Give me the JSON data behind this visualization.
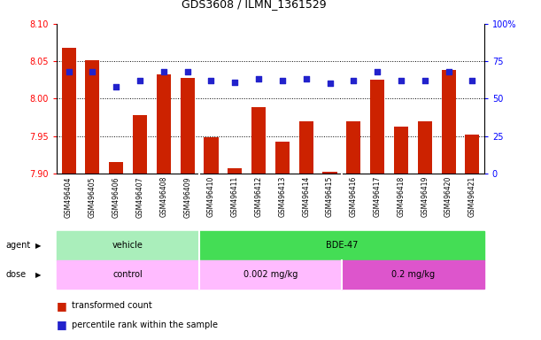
{
  "title": "GDS3608 / ILMN_1361529",
  "samples": [
    "GSM496404",
    "GSM496405",
    "GSM496406",
    "GSM496407",
    "GSM496408",
    "GSM496409",
    "GSM496410",
    "GSM496411",
    "GSM496412",
    "GSM496413",
    "GSM496414",
    "GSM496415",
    "GSM496416",
    "GSM496417",
    "GSM496418",
    "GSM496419",
    "GSM496420",
    "GSM496421"
  ],
  "bar_values": [
    8.068,
    8.051,
    7.915,
    7.978,
    8.032,
    8.028,
    7.948,
    7.907,
    7.988,
    7.943,
    7.97,
    7.902,
    7.97,
    8.025,
    7.962,
    7.97,
    8.038,
    7.952
  ],
  "percentile_values": [
    68,
    68,
    58,
    62,
    68,
    68,
    62,
    61,
    63,
    62,
    63,
    60,
    62,
    68,
    62,
    62,
    68,
    62
  ],
  "bar_color": "#CC2200",
  "percentile_color": "#2222CC",
  "ylim_left": [
    7.9,
    8.1
  ],
  "ylim_right": [
    0,
    100
  ],
  "yticks_left": [
    7.9,
    7.95,
    8.0,
    8.05,
    8.1
  ],
  "yticks_right": [
    0,
    25,
    50,
    75,
    100
  ],
  "ytick_labels_right": [
    "0",
    "25",
    "50",
    "75",
    "100%"
  ],
  "grid_values": [
    7.95,
    8.0,
    8.05
  ],
  "agent_configs": [
    {
      "text": "vehicle",
      "start": 0,
      "end": 5,
      "color": "#AAEEBB"
    },
    {
      "text": "BDE-47",
      "start": 6,
      "end": 17,
      "color": "#44DD55"
    }
  ],
  "dose_configs": [
    {
      "text": "control",
      "start": 0,
      "end": 5,
      "color": "#FFBBFF"
    },
    {
      "text": "0.002 mg/kg",
      "start": 6,
      "end": 11,
      "color": "#FFBBFF"
    },
    {
      "text": "0.2 mg/kg",
      "start": 12,
      "end": 17,
      "color": "#DD55CC"
    }
  ],
  "legend_bar_label": "transformed count",
  "legend_dot_label": "percentile rank within the sample",
  "bar_width": 0.6,
  "xtick_bg_color": "#CCCCCC",
  "plot_bg_color": "#FFFFFF"
}
